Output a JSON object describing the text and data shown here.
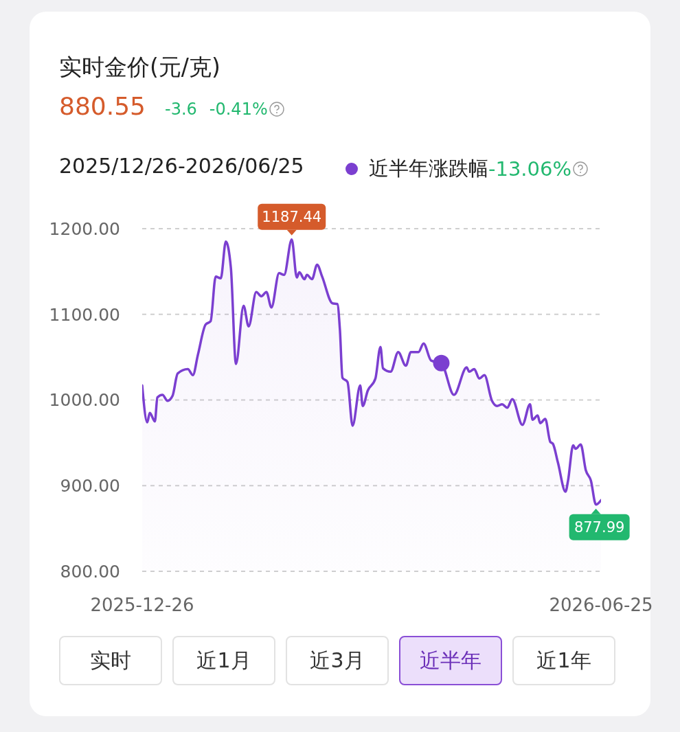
{
  "chart_data": {
    "type": "area",
    "title": "实时金价(元/克)",
    "xlim": [
      "2025-12-26",
      "2026-06-25"
    ],
    "xticks": [
      {
        "value": "2025-12-26",
        "label": "2025-12-26"
      },
      {
        "value": "2026-06-25",
        "label": "2026-06-25"
      }
    ],
    "ylim": [
      800,
      1200
    ],
    "yticks": [
      {
        "value": 800,
        "label": "800.00"
      },
      {
        "value": 900,
        "label": "900.00"
      },
      {
        "value": 1000,
        "label": "1000.00"
      },
      {
        "value": 1100,
        "label": "1100.00"
      },
      {
        "value": 1200,
        "label": "1200.00"
      }
    ],
    "grid": "y",
    "line_style": "solid",
    "marker": "none",
    "legend": "top right",
    "series": [
      {
        "name": "近半年涨跌幅",
        "color": "#7b3fd0",
        "x": [
          "2025-12-26",
          "2025-12-28",
          "2025-12-29",
          "2025-12-31",
          "2026-01-01",
          "2026-01-03",
          "2026-01-05",
          "2026-01-07",
          "2026-01-09",
          "2026-01-13",
          "2026-01-15",
          "2026-01-17",
          "2026-01-20",
          "2026-01-22",
          "2026-01-24",
          "2026-01-26",
          "2026-01-28",
          "2026-01-30",
          "2026-02-01",
          "2026-02-04",
          "2026-02-06",
          "2026-02-09",
          "2026-02-11",
          "2026-02-13",
          "2026-02-15",
          "2026-02-18",
          "2026-02-20",
          "2026-02-23",
          "2026-02-25",
          "2026-02-26",
          "2026-02-28",
          "2026-03-01",
          "2026-03-03",
          "2026-03-05",
          "2026-03-07",
          "2026-03-11",
          "2026-03-13",
          "2026-03-14",
          "2026-03-15",
          "2026-03-17",
          "2026-03-19",
          "2026-03-22",
          "2026-03-23",
          "2026-03-25",
          "2026-03-28",
          "2026-03-30",
          "2026-03-31",
          "2026-04-03",
          "2026-04-06",
          "2026-04-09",
          "2026-04-11",
          "2026-04-14",
          "2026-04-16",
          "2026-04-19",
          "2026-04-23",
          "2026-04-28",
          "2026-05-03",
          "2026-05-04",
          "2026-05-06",
          "2026-05-08",
          "2026-05-10",
          "2026-05-13",
          "2026-05-15",
          "2026-05-17",
          "2026-05-19",
          "2026-05-21",
          "2026-05-25",
          "2026-05-28",
          "2026-05-29",
          "2026-05-31",
          "2026-06-01",
          "2026-06-03",
          "2026-06-05",
          "2026-06-06",
          "2026-06-08",
          "2026-06-11",
          "2026-06-12",
          "2026-06-14",
          "2026-06-15",
          "2026-06-17",
          "2026-06-19",
          "2026-06-21",
          "2026-06-23",
          "2026-06-25"
        ],
        "values": [
          1017,
          974,
          985,
          975,
          1003,
          1006,
          999,
          1005,
          1031,
          1036,
          1029,
          1053,
          1088,
          1092,
          1144,
          1142,
          1185,
          1154,
          1042,
          1110,
          1086,
          1126,
          1121,
          1126,
          1108,
          1148,
          1146,
          1187.44,
          1143,
          1149,
          1141,
          1146,
          1141,
          1158,
          1144,
          1113,
          1112,
          1082,
          1026,
          1021,
          970,
          1017,
          993,
          1011,
          1025,
          1062,
          1037,
          1033,
          1056,
          1040,
          1056,
          1056,
          1066,
          1046,
          1043,
          1006,
          1038,
          1033,
          1036,
          1025,
          1029,
          999,
          993,
          995,
          991,
          1001,
          971,
          995,
          977,
          982,
          973,
          978,
          951,
          949,
          927,
          893,
          906,
          947,
          943,
          948,
          918,
          906,
          877.99,
          883
        ]
      },
      {
        "type": "scatter",
        "color": "#7b3fd0",
        "marker": "circle",
        "x": [
          "2026-04-23"
        ],
        "values": [
          1043
        ]
      }
    ],
    "annotations": [
      {
        "text": "1187.44",
        "x": "2026-02-23",
        "y": 1187.44
      },
      {
        "text": "877.99",
        "x": "2026-06-23",
        "y": 877.99
      },
      "880.55",
      "-3.6",
      "-0.41%",
      "2025/12/26-2026/06/25",
      "-13.06%",
      "实时",
      "近1月",
      "近3月",
      "近半年",
      "近1年"
    ]
  }
}
